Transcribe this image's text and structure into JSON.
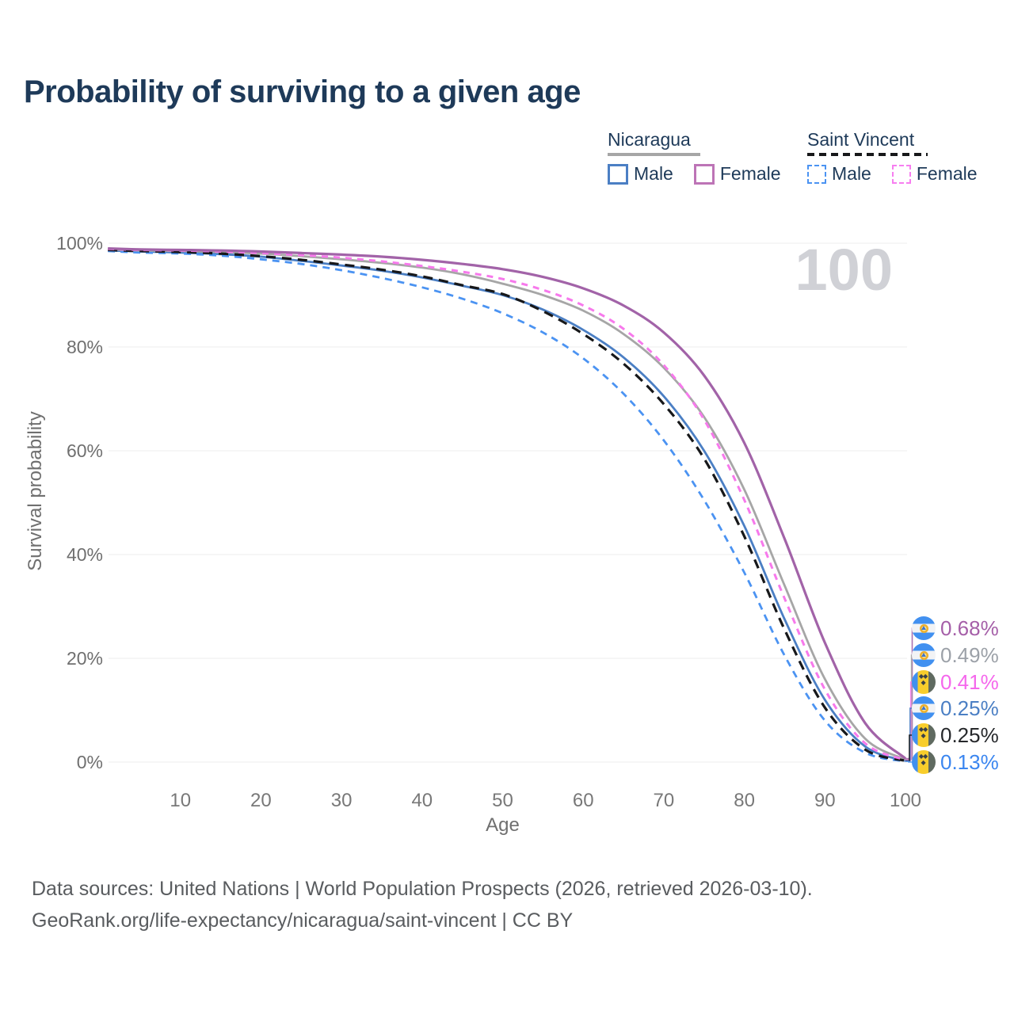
{
  "title": "Probability of surviving to a given age",
  "legend": {
    "groups": [
      {
        "name": "Nicaragua",
        "line_style": "solid",
        "line_color": "#a6a6a6",
        "items": [
          {
            "label": "Male",
            "color": "#4b7fc4",
            "style": "solid"
          },
          {
            "label": "Female",
            "color": "#bd74b6",
            "style": "solid"
          }
        ]
      },
      {
        "name": "Saint Vincent",
        "line_style": "dashed",
        "line_color": "#17181a",
        "items": [
          {
            "label": "Male",
            "color": "#4b93f2",
            "style": "dashed"
          },
          {
            "label": "Female",
            "color": "#f77ef0",
            "style": "dashed"
          }
        ]
      }
    ]
  },
  "chart_data": {
    "type": "line",
    "title": "Probability of surviving to a given age",
    "xlabel": "Age",
    "ylabel": "Survival probability",
    "xlim": [
      0,
      100
    ],
    "ylim": [
      0,
      100
    ],
    "grid": true,
    "legend_position": "top-right",
    "age_cursor_label": "100",
    "x_ticks": [
      10,
      20,
      30,
      40,
      50,
      60,
      70,
      80,
      90,
      100
    ],
    "y_ticks": [
      {
        "value": 0,
        "label": "0%"
      },
      {
        "value": 20,
        "label": "20%"
      },
      {
        "value": 40,
        "label": "40%"
      },
      {
        "value": 60,
        "label": "60%"
      },
      {
        "value": 80,
        "label": "80%"
      },
      {
        "value": 100,
        "label": "100%"
      }
    ],
    "ages": [
      1,
      5,
      10,
      15,
      20,
      25,
      30,
      35,
      40,
      45,
      50,
      55,
      60,
      65,
      70,
      75,
      80,
      85,
      90,
      95,
      100
    ],
    "draw_order": [
      "nic_male",
      "sv_male",
      "nic_total",
      "sv_total",
      "sv_female",
      "nic_female"
    ],
    "end_label_order": [
      "nic_female",
      "nic_total",
      "sv_female",
      "nic_male",
      "sv_total",
      "sv_male"
    ],
    "series": [
      {
        "id": "nic_female",
        "name": "Nicaragua Female",
        "country": "Nicaragua",
        "sex": "Female",
        "flag": "nicaragua",
        "style": "solid",
        "color": "#a263a8",
        "label_color": "#a55fa8",
        "width": 3.2,
        "end_label": "0.68%",
        "values": [
          99.0,
          98.8,
          98.7,
          98.6,
          98.4,
          98.1,
          97.8,
          97.4,
          96.8,
          96.0,
          95.0,
          93.5,
          91.3,
          88.0,
          82.8,
          74.5,
          61.5,
          43.0,
          23.0,
          7.5,
          0.68
        ]
      },
      {
        "id": "nic_total",
        "name": "Nicaragua Both sexes",
        "country": "Nicaragua",
        "sex": "Both",
        "flag": "nicaragua",
        "style": "solid",
        "color": "#a6a6a6",
        "label_color": "#9ca1a8",
        "width": 2.8,
        "end_label": "0.49%",
        "values": [
          98.8,
          98.6,
          98.5,
          98.3,
          98.0,
          97.5,
          96.9,
          96.2,
          95.3,
          94.0,
          92.2,
          90.0,
          87.0,
          82.5,
          76.0,
          66.5,
          52.5,
          34.0,
          16.0,
          4.5,
          0.49
        ]
      },
      {
        "id": "sv_female",
        "name": "Saint Vincent Female",
        "country": "Saint Vincent",
        "sex": "Female",
        "flag": "saint-vincent",
        "style": "dashed",
        "color": "#f779ec",
        "label_color": "#f567ec",
        "width": 3.0,
        "dash": "8 7",
        "end_label": "0.41%",
        "values": [
          98.9,
          98.7,
          98.6,
          98.4,
          98.1,
          97.7,
          97.2,
          96.5,
          95.6,
          94.5,
          93.1,
          91.0,
          88.0,
          83.5,
          76.5,
          66.0,
          50.5,
          31.5,
          14.0,
          3.6,
          0.41
        ]
      },
      {
        "id": "nic_male",
        "name": "Nicaragua Male",
        "country": "Nicaragua",
        "sex": "Male",
        "flag": "nicaragua",
        "style": "solid",
        "color": "#4b7fc4",
        "label_color": "#4b7fc4",
        "width": 2.8,
        "end_label": "0.25%",
        "values": [
          98.6,
          98.4,
          98.2,
          97.9,
          97.4,
          96.6,
          95.7,
          94.7,
          93.4,
          91.8,
          90.0,
          87.2,
          83.3,
          78.0,
          70.5,
          60.0,
          45.5,
          27.5,
          12.0,
          3.0,
          0.25
        ]
      },
      {
        "id": "sv_total",
        "name": "Saint Vincent Both sexes",
        "country": "Saint Vincent",
        "sex": "Both",
        "flag": "saint-vincent",
        "style": "dashed",
        "color": "#17181a",
        "label_color": "#26282b",
        "width": 3.2,
        "dash": "12 8",
        "end_label": "0.25%",
        "values": [
          98.7,
          98.5,
          98.3,
          98.0,
          97.5,
          96.8,
          95.9,
          94.9,
          93.6,
          91.9,
          90.2,
          86.9,
          82.5,
          76.8,
          69.0,
          58.5,
          43.5,
          25.5,
          10.5,
          2.4,
          0.25
        ]
      },
      {
        "id": "sv_male",
        "name": "Saint Vincent Male",
        "country": "Saint Vincent",
        "sex": "Male",
        "flag": "saint-vincent",
        "style": "dashed",
        "color": "#4b93f2",
        "label_color": "#3b86f0",
        "width": 2.8,
        "dash": "9 7",
        "end_label": "0.13%",
        "values": [
          98.5,
          98.2,
          98.0,
          97.6,
          96.9,
          96.0,
          94.8,
          93.3,
          91.5,
          89.3,
          86.5,
          82.8,
          77.8,
          71.0,
          62.0,
          50.5,
          36.5,
          20.5,
          8.0,
          1.8,
          0.13
        ]
      }
    ]
  },
  "footer": {
    "line1": "Data sources: United Nations | World Population Prospects (2026, retrieved 2026-03-10).",
    "line2": "GeoRank.org/life-expectancy/nicaragua/saint-vincent | CC BY"
  }
}
